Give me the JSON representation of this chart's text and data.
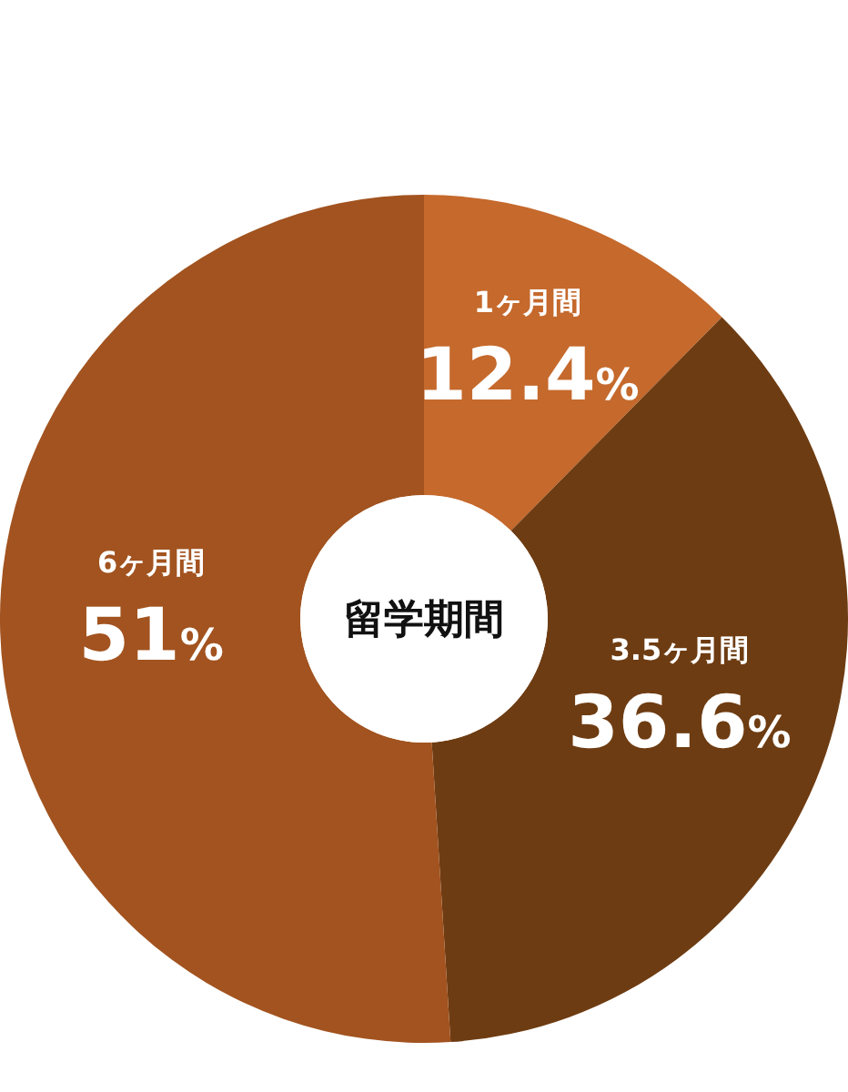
{
  "chart_data": {
    "type": "donut",
    "title": "留学期間",
    "categories": [
      "1ヶ月間",
      "3.5ヶ月間",
      "6ヶ月間"
    ],
    "values": [
      12.4,
      36.6,
      51
    ],
    "colors": [
      "#c5692c",
      "#6e3c12",
      "#a2531f"
    ],
    "value_labels": [
      "12.4%",
      "36.6%",
      "51%"
    ]
  }
}
